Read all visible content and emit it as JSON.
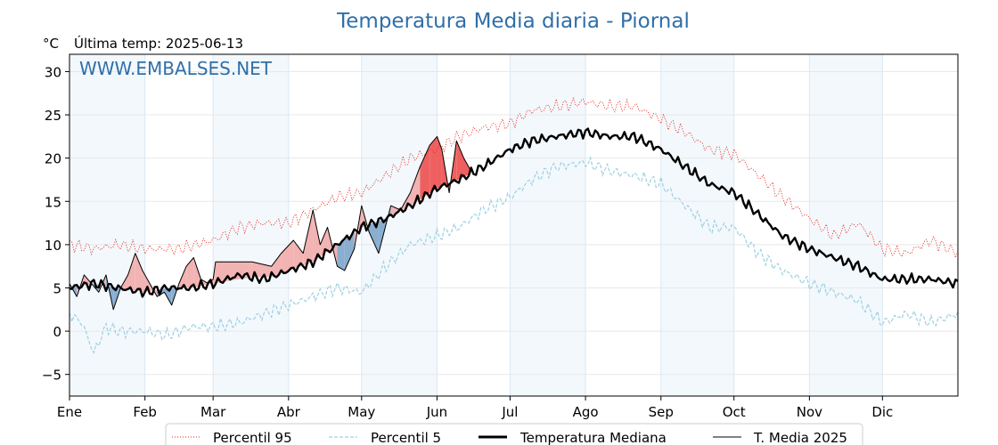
{
  "colors": {
    "title": "#2f6fa8",
    "watermark": "#2f6fa8",
    "p95": "#e8231b",
    "p5": "#9dd0e2",
    "median": "#000000",
    "current": "#000000",
    "fill_above": "#f2b3b3",
    "fill_above_strong": "#ee6060",
    "fill_below": "#8aaed0",
    "month_band": "#f3f8fc"
  },
  "chart_data": {
    "type": "line",
    "title": "Temperatura Media diaria - Piornal",
    "unit_label": "°C",
    "subtitle": "Última temp: 2025-06-13",
    "watermark": "WWW.EMBALSES.NET",
    "ylim": [
      -7.5,
      32
    ],
    "yticks": [
      30,
      25,
      20,
      15,
      10,
      5,
      0,
      -5
    ],
    "ytick_labels": [
      "30",
      "25",
      "20",
      "15",
      "10",
      "5",
      "0",
      "−5"
    ],
    "xlim": [
      0,
      365
    ],
    "month_starts": [
      0,
      31,
      59,
      90,
      120,
      151,
      181,
      212,
      243,
      273,
      304,
      334
    ],
    "month_labels": [
      "Ene",
      "Feb",
      "Mar",
      "Abr",
      "May",
      "Jun",
      "Jul",
      "Ago",
      "Sep",
      "Oct",
      "Nov",
      "Dic"
    ],
    "grid": true,
    "legend_position": "bottom-center",
    "series": [
      {
        "key": "p95",
        "name": "Percentil 95",
        "style": "dotted",
        "points": [
          [
            0,
            10.0
          ],
          [
            10,
            9.5
          ],
          [
            20,
            10.0
          ],
          [
            31,
            9.5
          ],
          [
            45,
            9.5
          ],
          [
            59,
            10.5
          ],
          [
            70,
            12.0
          ],
          [
            80,
            12.5
          ],
          [
            90,
            12.5
          ],
          [
            100,
            14.0
          ],
          [
            110,
            15.5
          ],
          [
            120,
            16.0
          ],
          [
            130,
            18.0
          ],
          [
            140,
            20.0
          ],
          [
            151,
            21.0
          ],
          [
            160,
            22.5
          ],
          [
            170,
            23.5
          ],
          [
            181,
            24.0
          ],
          [
            190,
            25.5
          ],
          [
            200,
            26.0
          ],
          [
            212,
            26.5
          ],
          [
            222,
            26.0
          ],
          [
            232,
            26.0
          ],
          [
            243,
            24.5
          ],
          [
            253,
            23.0
          ],
          [
            263,
            21.0
          ],
          [
            273,
            20.5
          ],
          [
            283,
            18.0
          ],
          [
            293,
            15.5
          ],
          [
            304,
            13.0
          ],
          [
            314,
            11.0
          ],
          [
            324,
            12.5
          ],
          [
            334,
            9.5
          ],
          [
            344,
            9.0
          ],
          [
            354,
            10.5
          ],
          [
            365,
            9.0
          ]
        ]
      },
      {
        "key": "p5",
        "name": "Percentil 5",
        "style": "dashed",
        "points": [
          [
            0,
            2.0
          ],
          [
            5,
            1.0
          ],
          [
            10,
            -2.5
          ],
          [
            15,
            0.5
          ],
          [
            20,
            0.0
          ],
          [
            31,
            0.0
          ],
          [
            40,
            -0.5
          ],
          [
            50,
            0.5
          ],
          [
            59,
            0.5
          ],
          [
            70,
            1.0
          ],
          [
            80,
            2.0
          ],
          [
            90,
            3.0
          ],
          [
            100,
            4.0
          ],
          [
            110,
            5.0
          ],
          [
            120,
            4.5
          ],
          [
            130,
            7.5
          ],
          [
            140,
            10.0
          ],
          [
            151,
            11.0
          ],
          [
            160,
            12.0
          ],
          [
            170,
            14.0
          ],
          [
            181,
            15.5
          ],
          [
            190,
            17.5
          ],
          [
            200,
            19.0
          ],
          [
            212,
            19.5
          ],
          [
            222,
            18.5
          ],
          [
            232,
            18.0
          ],
          [
            243,
            17.0
          ],
          [
            253,
            14.5
          ],
          [
            263,
            12.0
          ],
          [
            273,
            12.0
          ],
          [
            283,
            9.0
          ],
          [
            293,
            7.0
          ],
          [
            304,
            5.5
          ],
          [
            314,
            4.5
          ],
          [
            324,
            3.5
          ],
          [
            334,
            1.0
          ],
          [
            344,
            2.0
          ],
          [
            354,
            1.0
          ],
          [
            365,
            2.0
          ]
        ]
      },
      {
        "key": "median",
        "name": "Temperatura Mediana",
        "style": "solid-thick",
        "points": [
          [
            0,
            5.0
          ],
          [
            10,
            5.5
          ],
          [
            20,
            5.0
          ],
          [
            31,
            4.5
          ],
          [
            40,
            5.0
          ],
          [
            50,
            5.0
          ],
          [
            59,
            5.5
          ],
          [
            70,
            6.5
          ],
          [
            80,
            6.0
          ],
          [
            90,
            7.0
          ],
          [
            100,
            8.0
          ],
          [
            110,
            10.0
          ],
          [
            120,
            12.0
          ],
          [
            130,
            13.0
          ],
          [
            140,
            14.5
          ],
          [
            151,
            16.5
          ],
          [
            160,
            17.5
          ],
          [
            170,
            19.0
          ],
          [
            181,
            21.0
          ],
          [
            190,
            22.0
          ],
          [
            200,
            22.5
          ],
          [
            212,
            23.0
          ],
          [
            222,
            22.5
          ],
          [
            232,
            22.5
          ],
          [
            243,
            21.0
          ],
          [
            253,
            19.0
          ],
          [
            263,
            17.0
          ],
          [
            273,
            16.0
          ],
          [
            283,
            13.5
          ],
          [
            293,
            11.0
          ],
          [
            304,
            9.5
          ],
          [
            314,
            8.5
          ],
          [
            324,
            7.5
          ],
          [
            334,
            6.0
          ],
          [
            344,
            6.0
          ],
          [
            354,
            6.0
          ],
          [
            365,
            5.5
          ]
        ]
      },
      {
        "key": "current",
        "name": "T. Media 2025",
        "style": "solid-thin",
        "points": [
          [
            0,
            5.5
          ],
          [
            3,
            4.0
          ],
          [
            6,
            6.5
          ],
          [
            9,
            5.5
          ],
          [
            12,
            4.5
          ],
          [
            15,
            6.5
          ],
          [
            18,
            2.5
          ],
          [
            21,
            5.0
          ],
          [
            24,
            6.5
          ],
          [
            27,
            9.0
          ],
          [
            30,
            7.0
          ],
          [
            33,
            5.5
          ],
          [
            36,
            4.0
          ],
          [
            39,
            4.5
          ],
          [
            42,
            3.0
          ],
          [
            45,
            5.5
          ],
          [
            48,
            7.5
          ],
          [
            51,
            8.5
          ],
          [
            54,
            6.0
          ],
          [
            57,
            5.5
          ],
          [
            59,
            6.0
          ],
          [
            60,
            8.0
          ],
          [
            75,
            8.0
          ],
          [
            83,
            7.5
          ],
          [
            87,
            9.0
          ],
          [
            92,
            10.5
          ],
          [
            96,
            9.0
          ],
          [
            100,
            14.0
          ],
          [
            103,
            10.0
          ],
          [
            106,
            12.0
          ],
          [
            110,
            7.5
          ],
          [
            113,
            7.0
          ],
          [
            117,
            9.5
          ],
          [
            120,
            14.5
          ],
          [
            123,
            11.5
          ],
          [
            127,
            9.0
          ],
          [
            132,
            14.5
          ],
          [
            136,
            14.0
          ],
          [
            140,
            16.0
          ],
          [
            144,
            19.0
          ],
          [
            148,
            21.5
          ],
          [
            151,
            22.5
          ],
          [
            153,
            21.0
          ],
          [
            156,
            16.0
          ],
          [
            159,
            22.0
          ],
          [
            162,
            20.0
          ],
          [
            165,
            18.5
          ]
        ]
      }
    ]
  }
}
